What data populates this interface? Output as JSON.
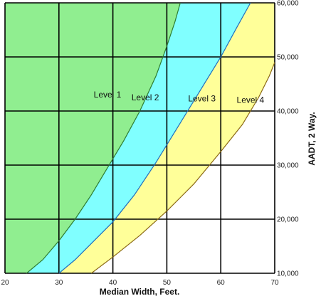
{
  "chart_data": {
    "type": "area",
    "title": "",
    "xlabel": "Median Width, Feet.",
    "ylabel": "AADT, 2 Way.",
    "xlim": [
      20,
      70
    ],
    "ylim": [
      10000,
      60000
    ],
    "x_ticks": [
      20,
      30,
      40,
      50,
      60,
      70
    ],
    "y_ticks": [
      10000,
      20000,
      30000,
      40000,
      50000,
      60000
    ],
    "x_tick_labels": [
      "20",
      "30",
      "40",
      "50",
      "60",
      "70"
    ],
    "y_tick_labels": [
      "10,000",
      "20,000",
      "30,000",
      "40,000",
      "50,000",
      "60,000"
    ],
    "grid": true,
    "regions": [
      {
        "name": "Level 1",
        "label_at": {
          "x": 39,
          "y": 42500
        },
        "color": "#90ee90"
      },
      {
        "name": "Level 2",
        "label_at": {
          "x": 46,
          "y": 42000
        },
        "color": "#80ffff"
      },
      {
        "name": "Level 3",
        "label_at": {
          "x": 56.5,
          "y": 41800
        },
        "color": "#ffff99"
      },
      {
        "name": "Level 4",
        "label_at": {
          "x": 65.5,
          "y": 41500
        },
        "color": "#ffffff"
      }
    ],
    "boundaries": [
      {
        "between": [
          "Level 1",
          "Level 2"
        ],
        "color": "#2e7d32",
        "points": [
          [
            24,
            10000
          ],
          [
            27,
            12500
          ],
          [
            30,
            16000
          ],
          [
            33,
            20000
          ],
          [
            36,
            24500
          ],
          [
            39,
            29500
          ],
          [
            42,
            34500
          ],
          [
            45,
            40000
          ],
          [
            48,
            46500
          ],
          [
            50,
            52000
          ],
          [
            51.5,
            56500
          ],
          [
            52.5,
            60000
          ]
        ]
      },
      {
        "between": [
          "Level 2",
          "Level 3"
        ],
        "color": "#1f6fbf",
        "points": [
          [
            30,
            10000
          ],
          [
            33,
            12500
          ],
          [
            36,
            15500
          ],
          [
            40,
            19500
          ],
          [
            44,
            24500
          ],
          [
            48,
            30500
          ],
          [
            52,
            37000
          ],
          [
            56,
            43500
          ],
          [
            60,
            50000
          ],
          [
            63,
            55500
          ],
          [
            65.5,
            60000
          ]
        ]
      },
      {
        "between": [
          "Level 3",
          "Level 4"
        ],
        "color": "#8b6914",
        "points": [
          [
            36,
            10000
          ],
          [
            40,
            13000
          ],
          [
            45,
            17000
          ],
          [
            50,
            21500
          ],
          [
            55,
            26500
          ],
          [
            60,
            32500
          ],
          [
            64,
            37500
          ],
          [
            67,
            42500
          ],
          [
            69,
            46500
          ],
          [
            70,
            49000
          ]
        ]
      }
    ]
  }
}
